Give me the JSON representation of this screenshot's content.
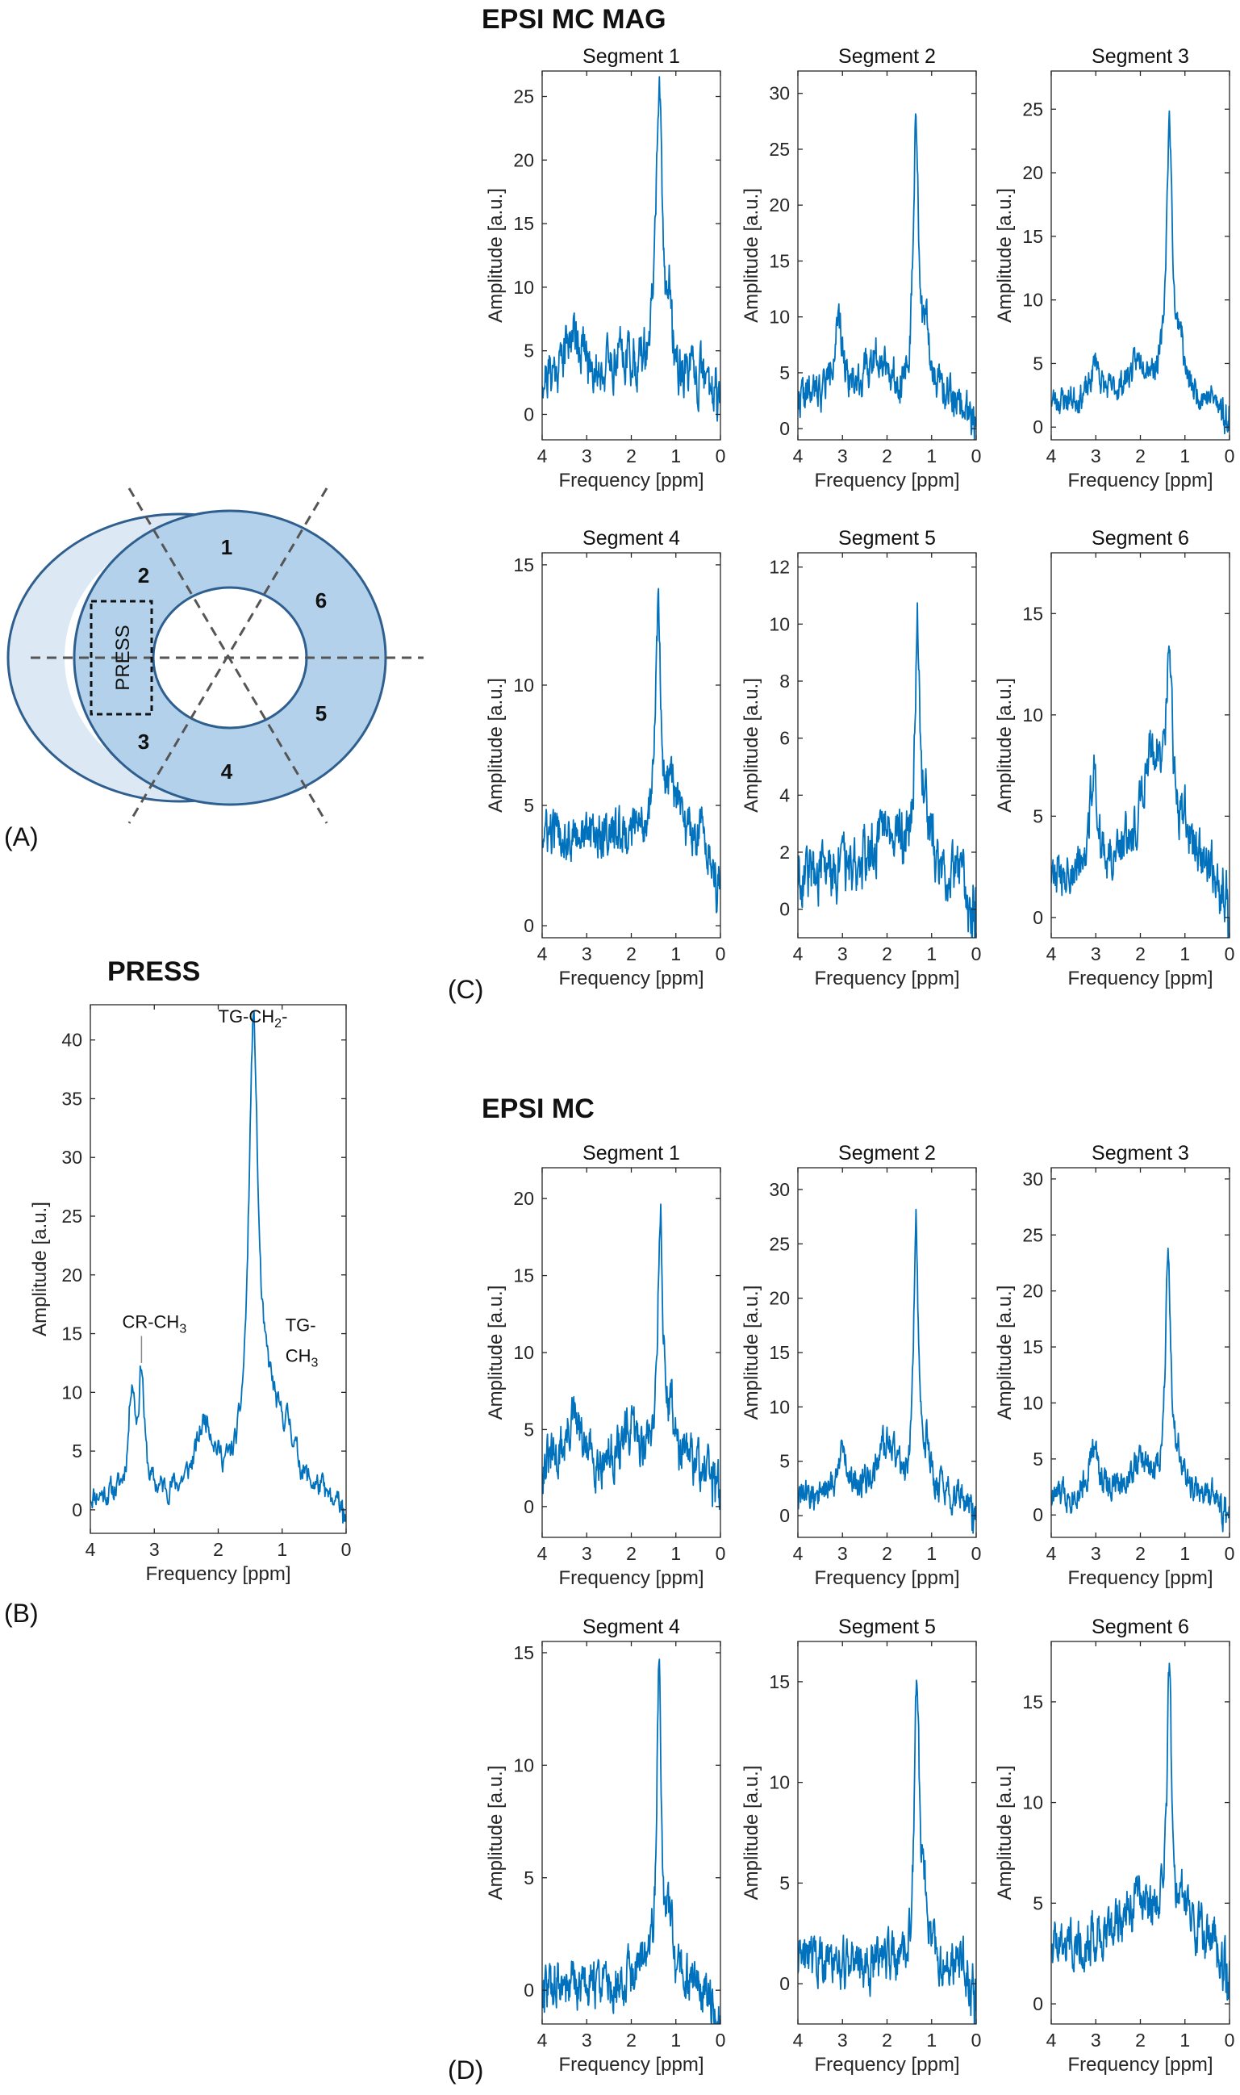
{
  "labels": {
    "group_c_title": "EPSI MC MAG",
    "group_d_title": "EPSI MC",
    "press_title": "PRESS",
    "panel_a": "(A)",
    "panel_b": "(B)",
    "panel_c": "(C)",
    "panel_d": "(D)",
    "xlabel": "Frequency [ppm]",
    "ylabel": "Amplitude [a.u.]"
  },
  "diagram": {
    "segment_numbers": [
      "1",
      "2",
      "3",
      "4",
      "5",
      "6"
    ],
    "press_label": "PRESS",
    "fill_color": "#b3d1ea",
    "outer_crescent_color": "#dce8f3",
    "edge_color": "#2e5f8f"
  },
  "colors": {
    "line": "#0072BD",
    "axis": "#262626"
  },
  "chart_data": [
    {
      "id": "press",
      "type": "line",
      "title": "",
      "xlabel": "Frequency [ppm]",
      "ylabel": "Amplitude [a.u.]",
      "xlim": [
        4,
        0
      ],
      "ylim": [
        -2,
        43
      ],
      "xticks": [
        4,
        3,
        2,
        1,
        0
      ],
      "yticks": [
        0,
        5,
        10,
        15,
        20,
        25,
        30,
        35,
        40
      ],
      "annotations": [
        {
          "text": "TG-CH",
          "sub": "2",
          "suffix": "-",
          "x": 2.0,
          "y": 41.5
        },
        {
          "text": "CR-CH",
          "sub": "3",
          "suffix": "",
          "x": 3.25,
          "y": 15.5
        },
        {
          "text": "TG-",
          "sub": "",
          "suffix": "",
          "x": 0.95,
          "y": 15.2
        },
        {
          "text": "CH",
          "sub": "3",
          "suffix": "",
          "x": 0.95,
          "y": 12.6
        }
      ],
      "peaks": [
        {
          "c": 1.45,
          "w": 0.09,
          "a": 38
        },
        {
          "c": 1.2,
          "w": 0.18,
          "a": 6
        },
        {
          "c": 3.35,
          "w": 0.06,
          "a": 9
        },
        {
          "c": 3.2,
          "w": 0.05,
          "a": 10
        },
        {
          "c": 2.2,
          "w": 0.18,
          "a": 6
        },
        {
          "c": 0.9,
          "w": 0.15,
          "a": 4
        }
      ],
      "noise": 0.9,
      "baseline": 1.0,
      "seed": 11
    },
    {
      "id": "mag1",
      "type": "line",
      "title": "Segment 1",
      "xlabel": "Frequency [ppm]",
      "ylabel": "Amplitude [a.u.]",
      "xlim": [
        4,
        0
      ],
      "ylim": [
        -2,
        27
      ],
      "xticks": [
        4,
        3,
        2,
        1,
        0
      ],
      "yticks": [
        0,
        5,
        10,
        15,
        20,
        25
      ],
      "peaks": [
        {
          "c": 1.38,
          "w": 0.09,
          "a": 22
        },
        {
          "c": 1.15,
          "w": 0.06,
          "a": 5
        },
        {
          "c": 3.3,
          "w": 0.25,
          "a": 4
        },
        {
          "c": 2.2,
          "w": 0.3,
          "a": 2
        }
      ],
      "noise": 1.6,
      "baseline": 2.5,
      "seed": 21
    },
    {
      "id": "mag2",
      "type": "line",
      "title": "Segment 2",
      "xlabel": "Frequency [ppm]",
      "ylabel": "Amplitude [a.u.]",
      "xlim": [
        4,
        0
      ],
      "ylim": [
        -1,
        32
      ],
      "xticks": [
        4,
        3,
        2,
        1,
        0
      ],
      "yticks": [
        0,
        5,
        10,
        15,
        20,
        25,
        30
      ],
      "peaks": [
        {
          "c": 1.35,
          "w": 0.07,
          "a": 24
        },
        {
          "c": 1.1,
          "w": 0.1,
          "a": 5
        },
        {
          "c": 3.1,
          "w": 0.15,
          "a": 6
        },
        {
          "c": 2.2,
          "w": 0.3,
          "a": 4
        }
      ],
      "noise": 1.4,
      "baseline": 2.5,
      "seed": 22
    },
    {
      "id": "mag3",
      "type": "line",
      "title": "Segment 3",
      "xlabel": "Frequency [ppm]",
      "ylabel": "Amplitude [a.u.]",
      "xlim": [
        4,
        0
      ],
      "ylim": [
        -1,
        28
      ],
      "xticks": [
        4,
        3,
        2,
        1,
        0
      ],
      "yticks": [
        0,
        5,
        10,
        15,
        20,
        25
      ],
      "peaks": [
        {
          "c": 1.35,
          "w": 0.08,
          "a": 21
        },
        {
          "c": 1.1,
          "w": 0.08,
          "a": 4
        },
        {
          "c": 3.0,
          "w": 0.1,
          "a": 3
        },
        {
          "c": 2.0,
          "w": 0.35,
          "a": 3
        }
      ],
      "noise": 0.9,
      "baseline": 2.0,
      "seed": 23
    },
    {
      "id": "mag4",
      "type": "line",
      "title": "Segment 4",
      "xlabel": "Frequency [ppm]",
      "ylabel": "Amplitude [a.u.]",
      "xlim": [
        4,
        0
      ],
      "ylim": [
        -0.5,
        15.5
      ],
      "xticks": [
        4,
        3,
        2,
        1,
        0
      ],
      "yticks": [
        0,
        5,
        10,
        15
      ],
      "peaks": [
        {
          "c": 1.4,
          "w": 0.07,
          "a": 9
        },
        {
          "c": 1.1,
          "w": 0.12,
          "a": 2
        }
      ],
      "noise": 0.8,
      "baseline": 3.8,
      "seed": 24
    },
    {
      "id": "mag5",
      "type": "line",
      "title": "Segment 5",
      "xlabel": "Frequency [ppm]",
      "ylabel": "Amplitude [a.u.]",
      "xlim": [
        4,
        0
      ],
      "ylim": [
        -1,
        12.5
      ],
      "xticks": [
        4,
        3,
        2,
        1,
        0
      ],
      "yticks": [
        0,
        2,
        4,
        6,
        8,
        10,
        12
      ],
      "peaks": [
        {
          "c": 1.32,
          "w": 0.06,
          "a": 8
        },
        {
          "c": 1.15,
          "w": 0.12,
          "a": 2
        },
        {
          "c": 2.0,
          "w": 0.3,
          "a": 2
        }
      ],
      "noise": 0.8,
      "baseline": 1.2,
      "seed": 25
    },
    {
      "id": "mag6",
      "type": "line",
      "title": "Segment 6",
      "xlabel": "Frequency [ppm]",
      "ylabel": "Amplitude [a.u.]",
      "xlim": [
        4,
        0
      ],
      "ylim": [
        -1,
        18
      ],
      "xticks": [
        4,
        3,
        2,
        1,
        0
      ],
      "yticks": [
        0,
        5,
        10,
        15
      ],
      "peaks": [
        {
          "c": 1.35,
          "w": 0.07,
          "a": 9
        },
        {
          "c": 1.7,
          "w": 0.35,
          "a": 6
        },
        {
          "c": 3.05,
          "w": 0.1,
          "a": 5
        },
        {
          "c": 1.0,
          "w": 0.1,
          "a": 2
        }
      ],
      "noise": 1.0,
      "baseline": 2.0,
      "seed": 26
    },
    {
      "id": "mc1",
      "type": "line",
      "title": "Segment 1",
      "xlabel": "Frequency [ppm]",
      "ylabel": "Amplitude [a.u.]",
      "xlim": [
        4,
        0
      ],
      "ylim": [
        -2,
        22
      ],
      "xticks": [
        4,
        3,
        2,
        1,
        0
      ],
      "yticks": [
        0,
        5,
        10,
        15,
        20
      ],
      "peaks": [
        {
          "c": 1.35,
          "w": 0.07,
          "a": 16
        },
        {
          "c": 1.1,
          "w": 0.1,
          "a": 3
        },
        {
          "c": 3.3,
          "w": 0.2,
          "a": 3
        },
        {
          "c": 2.0,
          "w": 0.3,
          "a": 2
        }
      ],
      "noise": 1.3,
      "baseline": 2.5,
      "seed": 31
    },
    {
      "id": "mc2",
      "type": "line",
      "title": "Segment 2",
      "xlabel": "Frequency [ppm]",
      "ylabel": "Amplitude [a.u.]",
      "xlim": [
        4,
        0
      ],
      "ylim": [
        -2,
        32
      ],
      "xticks": [
        4,
        3,
        2,
        1,
        0
      ],
      "yticks": [
        0,
        5,
        10,
        15,
        20,
        25,
        30
      ],
      "peaks": [
        {
          "c": 1.35,
          "w": 0.06,
          "a": 25
        },
        {
          "c": 1.1,
          "w": 0.08,
          "a": 4
        },
        {
          "c": 3.0,
          "w": 0.15,
          "a": 4
        },
        {
          "c": 2.0,
          "w": 0.3,
          "a": 5
        }
      ],
      "noise": 1.2,
      "baseline": 1.5,
      "seed": 32
    },
    {
      "id": "mc3",
      "type": "line",
      "title": "Segment 3",
      "xlabel": "Frequency [ppm]",
      "ylabel": "Amplitude [a.u.]",
      "xlim": [
        4,
        0
      ],
      "ylim": [
        -2,
        31
      ],
      "xticks": [
        4,
        3,
        2,
        1,
        0
      ],
      "yticks": [
        0,
        5,
        10,
        15,
        20,
        25,
        30
      ],
      "peaks": [
        {
          "c": 1.38,
          "w": 0.07,
          "a": 22
        },
        {
          "c": 1.15,
          "w": 0.1,
          "a": 3
        },
        {
          "c": 3.05,
          "w": 0.15,
          "a": 4
        },
        {
          "c": 2.0,
          "w": 0.3,
          "a": 3
        }
      ],
      "noise": 1.1,
      "baseline": 1.5,
      "seed": 33
    },
    {
      "id": "mc4",
      "type": "line",
      "title": "Segment 4",
      "xlabel": "Frequency [ppm]",
      "ylabel": "Amplitude [a.u.]",
      "xlim": [
        4,
        0
      ],
      "ylim": [
        -1.5,
        15.5
      ],
      "xticks": [
        4,
        3,
        2,
        1,
        0
      ],
      "yticks": [
        0,
        5,
        10,
        15
      ],
      "peaks": [
        {
          "c": 1.38,
          "w": 0.06,
          "a": 13
        },
        {
          "c": 1.15,
          "w": 0.1,
          "a": 2.5
        },
        {
          "c": 1.7,
          "w": 0.2,
          "a": 1
        }
      ],
      "noise": 0.9,
      "baseline": 0.2,
      "seed": 34
    },
    {
      "id": "mc5",
      "type": "line",
      "title": "Segment 5",
      "xlabel": "Frequency [ppm]",
      "ylabel": "Amplitude [a.u.]",
      "xlim": [
        4,
        0
      ],
      "ylim": [
        -2,
        17
      ],
      "xticks": [
        4,
        3,
        2,
        1,
        0
      ],
      "yticks": [
        0,
        5,
        10,
        15
      ],
      "peaks": [
        {
          "c": 1.33,
          "w": 0.06,
          "a": 14
        },
        {
          "c": 1.15,
          "w": 0.1,
          "a": 3
        }
      ],
      "noise": 1.0,
      "baseline": 1.0,
      "seed": 35
    },
    {
      "id": "mc6",
      "type": "line",
      "title": "Segment 6",
      "xlabel": "Frequency [ppm]",
      "ylabel": "Amplitude [a.u.]",
      "xlim": [
        4,
        0
      ],
      "ylim": [
        -1,
        18
      ],
      "xticks": [
        4,
        3,
        2,
        1,
        0
      ],
      "yticks": [
        0,
        5,
        10,
        15
      ],
      "peaks": [
        {
          "c": 1.35,
          "w": 0.06,
          "a": 13
        },
        {
          "c": 2.0,
          "w": 0.5,
          "a": 2
        },
        {
          "c": 1.0,
          "w": 0.1,
          "a": 2
        }
      ],
      "noise": 1.0,
      "baseline": 3.0,
      "seed": 36
    }
  ]
}
